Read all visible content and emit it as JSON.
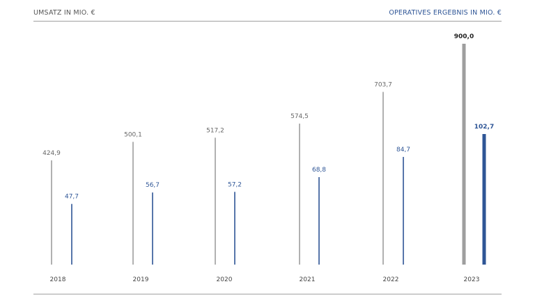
{
  "header": {
    "left_label": "UMSATZ IN MIO. €",
    "right_label": "OPERATIVES ERGEBNIS IN MIO. €"
  },
  "colors": {
    "revenue": "#9e9e9e",
    "operating_result": "#2e5596"
  },
  "chart_data": {
    "type": "bar",
    "categories": [
      "2018",
      "2019",
      "2020",
      "2021",
      "2022",
      "2023"
    ],
    "series": [
      {
        "name": "UMSATZ IN MIO. €",
        "values": [
          424.9,
          500.1,
          517.2,
          574.5,
          703.7,
          900.0
        ],
        "labels": [
          "424,9",
          "500,1",
          "517,2",
          "574,5",
          "703,7",
          "900,0"
        ]
      },
      {
        "name": "OPERATIVES ERGEBNIS IN MIO. €",
        "values": [
          47.7,
          56.7,
          57.2,
          68.8,
          84.7,
          102.7
        ],
        "labels": [
          "47,7",
          "56,7",
          "57,2",
          "68,8",
          "84,7",
          "102,7"
        ]
      }
    ],
    "highlight_category": "2023",
    "grid": false,
    "legend": "top"
  }
}
